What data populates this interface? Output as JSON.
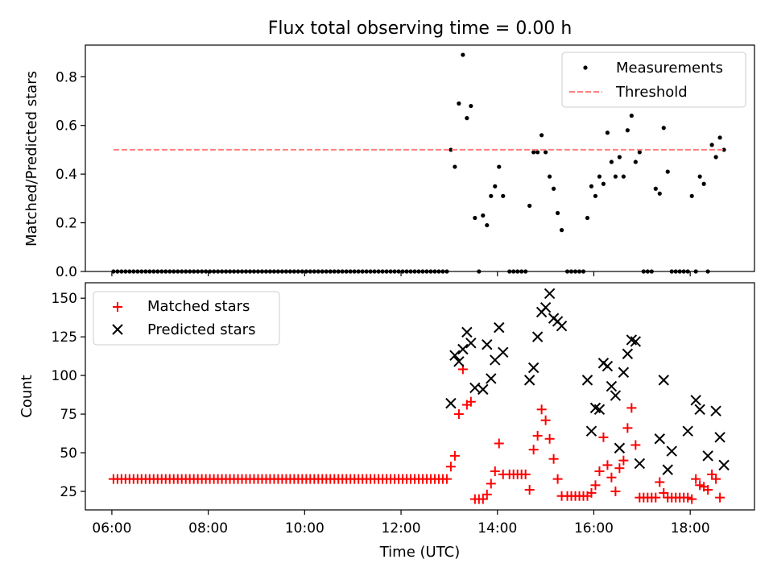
{
  "title": "Flux total observing time = 0.00 h",
  "chart_data": [
    {
      "type": "scatter",
      "xlabel": "",
      "ylabel": "Matched/Predicted stars",
      "xlim": [
        "05:27",
        "19:20"
      ],
      "ylim": [
        0,
        0.93
      ],
      "yticks": [
        0.0,
        0.2,
        0.4,
        0.6,
        0.8
      ],
      "yticklabels": [
        "0.0",
        "0.2",
        "0.4",
        "0.6",
        "0.8"
      ],
      "xticks": [
        "06:00",
        "08:00",
        "10:00",
        "12:00",
        "14:00",
        "16:00",
        "18:00"
      ],
      "grid": false,
      "legend": "top-right",
      "legend_entries": [
        "Measurements",
        "Threshold"
      ],
      "series": [
        {
          "name": "Measurements",
          "marker": "dot",
          "color": "#000000",
          "zero_run": {
            "start": "06:02",
            "end": "12:58",
            "step_minutes": 5,
            "value": 0
          },
          "points": [
            [
              "13:02",
              0.5
            ],
            [
              "13:07",
              0.43
            ],
            [
              "13:12",
              0.69
            ],
            [
              "13:17",
              0.89
            ],
            [
              "13:22",
              0.63
            ],
            [
              "13:27",
              0.68
            ],
            [
              "13:32",
              0.22
            ],
            [
              "13:37",
              0.0
            ],
            [
              "13:42",
              0.23
            ],
            [
              "13:47",
              0.19
            ],
            [
              "13:52",
              0.31
            ],
            [
              "13:57",
              0.35
            ],
            [
              "14:02",
              0.43
            ],
            [
              "14:07",
              0.31
            ],
            [
              "14:15",
              0.0
            ],
            [
              "14:20",
              0.0
            ],
            [
              "14:25",
              0.0
            ],
            [
              "14:30",
              0.0
            ],
            [
              "14:35",
              0.0
            ],
            [
              "14:40",
              0.27
            ],
            [
              "14:45",
              0.49
            ],
            [
              "14:50",
              0.49
            ],
            [
              "14:55",
              0.56
            ],
            [
              "15:00",
              0.49
            ],
            [
              "15:05",
              0.39
            ],
            [
              "15:10",
              0.34
            ],
            [
              "15:15",
              0.24
            ],
            [
              "15:20",
              0.17
            ],
            [
              "15:27",
              0.0
            ],
            [
              "15:32",
              0.0
            ],
            [
              "15:37",
              0.0
            ],
            [
              "15:42",
              0.0
            ],
            [
              "15:47",
              0.0
            ],
            [
              "15:52",
              0.22
            ],
            [
              "15:57",
              0.35
            ],
            [
              "16:02",
              0.31
            ],
            [
              "16:07",
              0.39
            ],
            [
              "16:12",
              0.36
            ],
            [
              "16:17",
              0.57
            ],
            [
              "16:22",
              0.45
            ],
            [
              "16:27",
              0.39
            ],
            [
              "16:32",
              0.47
            ],
            [
              "16:37",
              0.39
            ],
            [
              "16:42",
              0.58
            ],
            [
              "16:47",
              0.64
            ],
            [
              "16:52",
              0.45
            ],
            [
              "16:57",
              0.49
            ],
            [
              "17:02",
              0.0
            ],
            [
              "17:07",
              0.0
            ],
            [
              "17:12",
              0.0
            ],
            [
              "17:17",
              0.34
            ],
            [
              "17:22",
              0.32
            ],
            [
              "17:27",
              0.59
            ],
            [
              "17:32",
              0.41
            ],
            [
              "17:37",
              0.0
            ],
            [
              "17:42",
              0.0
            ],
            [
              "17:47",
              0.0
            ],
            [
              "17:52",
              0.0
            ],
            [
              "17:57",
              0.0
            ],
            [
              "18:02",
              0.31
            ],
            [
              "18:07",
              0.0
            ],
            [
              "18:12",
              0.39
            ],
            [
              "18:17",
              0.36
            ],
            [
              "18:22",
              0.0
            ],
            [
              "18:27",
              0.52
            ],
            [
              "18:32",
              0.47
            ],
            [
              "18:37",
              0.55
            ],
            [
              "18:42",
              0.5
            ]
          ]
        },
        {
          "name": "Threshold",
          "style": "dashed",
          "color": "#ff7f7f",
          "points": [
            [
              "06:02",
              0.5
            ],
            [
              "18:42",
              0.5
            ]
          ]
        }
      ]
    },
    {
      "type": "scatter",
      "xlabel": "Time (UTC)",
      "ylabel": "Count",
      "xlim": [
        "05:27",
        "19:20"
      ],
      "ylim": [
        13,
        160
      ],
      "yticks": [
        25,
        50,
        75,
        100,
        125,
        150
      ],
      "yticklabels": [
        "25",
        "50",
        "75",
        "100",
        "125",
        "150"
      ],
      "xticks": [
        "06:00",
        "08:00",
        "10:00",
        "12:00",
        "14:00",
        "16:00",
        "18:00"
      ],
      "xticklabels": [
        "06:00",
        "08:00",
        "10:00",
        "12:00",
        "14:00",
        "16:00",
        "18:00"
      ],
      "grid": false,
      "legend": "top-left",
      "legend_entries": [
        "Matched stars",
        "Predicted stars"
      ],
      "series": [
        {
          "name": "Matched stars",
          "marker": "plus",
          "color": "#ff0000",
          "const_run": {
            "start": "06:02",
            "end": "12:58",
            "step_minutes": 5,
            "value": 33
          },
          "points": [
            [
              "13:02",
              41
            ],
            [
              "13:07",
              48
            ],
            [
              "13:12",
              75
            ],
            [
              "13:17",
              104
            ],
            [
              "13:22",
              81
            ],
            [
              "13:27",
              83
            ],
            [
              "13:32",
              20
            ],
            [
              "13:37",
              20
            ],
            [
              "13:42",
              20
            ],
            [
              "13:47",
              23
            ],
            [
              "13:52",
              30
            ],
            [
              "13:57",
              38
            ],
            [
              "14:02",
              56
            ],
            [
              "14:07",
              36
            ],
            [
              "14:15",
              36
            ],
            [
              "14:20",
              36
            ],
            [
              "14:25",
              36
            ],
            [
              "14:30",
              36
            ],
            [
              "14:35",
              36
            ],
            [
              "14:40",
              26
            ],
            [
              "14:45",
              52
            ],
            [
              "14:50",
              61
            ],
            [
              "14:55",
              78
            ],
            [
              "15:00",
              71
            ],
            [
              "15:05",
              59
            ],
            [
              "15:10",
              46
            ],
            [
              "15:15",
              33
            ],
            [
              "15:20",
              22
            ],
            [
              "15:27",
              22
            ],
            [
              "15:32",
              22
            ],
            [
              "15:37",
              22
            ],
            [
              "15:42",
              22
            ],
            [
              "15:47",
              22
            ],
            [
              "15:52",
              22
            ],
            [
              "15:57",
              24
            ],
            [
              "16:02",
              29
            ],
            [
              "16:07",
              38
            ],
            [
              "16:12",
              60
            ],
            [
              "16:17",
              42
            ],
            [
              "16:22",
              34
            ],
            [
              "16:27",
              25
            ],
            [
              "16:32",
              40
            ],
            [
              "16:37",
              45
            ],
            [
              "16:42",
              66
            ],
            [
              "16:47",
              79
            ],
            [
              "16:52",
              55
            ],
            [
              "16:57",
              21
            ],
            [
              "17:02",
              21
            ],
            [
              "17:07",
              21
            ],
            [
              "17:12",
              21
            ],
            [
              "17:17",
              21
            ],
            [
              "17:22",
              31
            ],
            [
              "17:27",
              24
            ],
            [
              "17:32",
              21
            ],
            [
              "17:37",
              21
            ],
            [
              "17:42",
              21
            ],
            [
              "17:47",
              21
            ],
            [
              "17:52",
              21
            ],
            [
              "17:57",
              21
            ],
            [
              "18:02",
              20
            ],
            [
              "18:07",
              33
            ],
            [
              "18:12",
              29
            ],
            [
              "18:17",
              28
            ],
            [
              "18:22",
              26
            ],
            [
              "18:27",
              36
            ],
            [
              "18:32",
              33
            ],
            [
              "18:37",
              21
            ]
          ]
        },
        {
          "name": "Predicted stars",
          "marker": "x",
          "color": "#000000",
          "points": [
            [
              "13:02",
              82
            ],
            [
              "13:07",
              113
            ],
            [
              "13:12",
              109
            ],
            [
              "13:17",
              117
            ],
            [
              "13:22",
              128
            ],
            [
              "13:27",
              121
            ],
            [
              "13:32",
              92
            ],
            [
              "13:42",
              91
            ],
            [
              "13:47",
              120
            ],
            [
              "13:52",
              98
            ],
            [
              "13:57",
              110
            ],
            [
              "14:02",
              131
            ],
            [
              "14:07",
              115
            ],
            [
              "14:40",
              97
            ],
            [
              "14:45",
              105
            ],
            [
              "14:50",
              125
            ],
            [
              "14:55",
              141
            ],
            [
              "15:00",
              144
            ],
            [
              "15:05",
              153
            ],
            [
              "15:10",
              137
            ],
            [
              "15:15",
              135
            ],
            [
              "15:20",
              132
            ],
            [
              "15:52",
              97
            ],
            [
              "15:57",
              64
            ],
            [
              "16:02",
              79
            ],
            [
              "16:07",
              78
            ],
            [
              "16:12",
              108
            ],
            [
              "16:17",
              106
            ],
            [
              "16:22",
              93
            ],
            [
              "16:27",
              87
            ],
            [
              "16:32",
              53
            ],
            [
              "16:37",
              102
            ],
            [
              "16:42",
              114
            ],
            [
              "16:47",
              123
            ],
            [
              "16:52",
              122
            ],
            [
              "16:57",
              43
            ],
            [
              "17:22",
              59
            ],
            [
              "17:27",
              97
            ],
            [
              "17:32",
              39
            ],
            [
              "17:37",
              51
            ],
            [
              "17:57",
              64
            ],
            [
              "18:07",
              84
            ],
            [
              "18:12",
              78
            ],
            [
              "18:22",
              48
            ],
            [
              "18:32",
              77
            ],
            [
              "18:37",
              60
            ],
            [
              "18:42",
              42
            ]
          ]
        }
      ]
    }
  ]
}
